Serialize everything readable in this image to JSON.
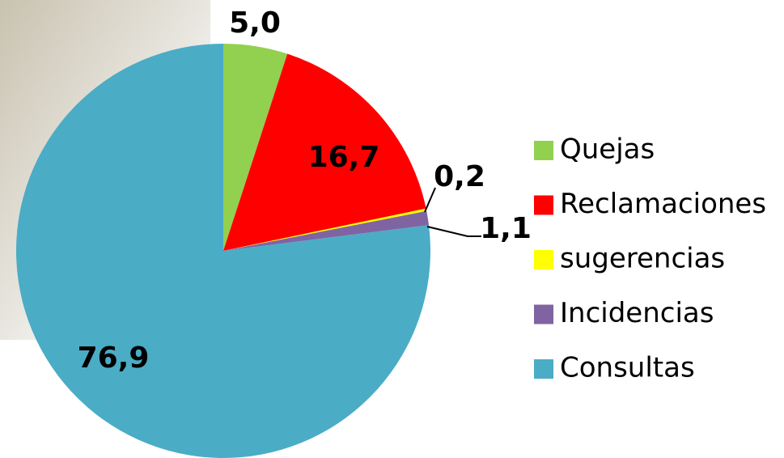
{
  "chart_data": {
    "type": "pie",
    "categories": [
      "Quejas",
      "Reclamaciones",
      "sugerencias",
      "Incidencias",
      "Consultas"
    ],
    "values": [
      5.0,
      16.7,
      0.2,
      1.1,
      76.9
    ],
    "value_labels": [
      "5,0",
      "16,7",
      "0,2",
      "1,1",
      "76,9"
    ],
    "colors": [
      "#92d050",
      "#ff0000",
      "#ffff00",
      "#8064a2",
      "#4bacc6"
    ],
    "legend": "right"
  }
}
